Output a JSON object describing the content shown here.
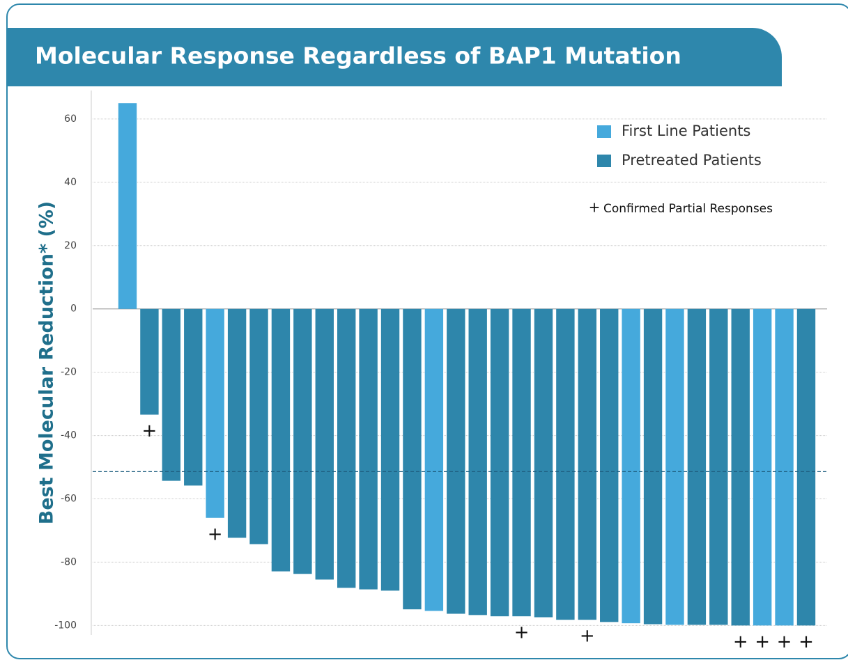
{
  "chart_data": {
    "type": "bar",
    "title": "Molecular Response Regardless of BAP1 Mutation",
    "y_label": "Best Molecular Reduction* (%)",
    "categories": [
      null,
      null,
      null,
      null,
      null,
      null,
      null,
      null,
      null,
      null,
      null,
      null,
      null,
      null,
      null,
      null,
      null,
      null,
      null,
      null,
      null,
      null,
      null,
      null,
      null,
      null,
      null,
      null,
      null,
      null,
      null,
      null
    ],
    "series": [
      {
        "name": "First Line Patients",
        "color": "#45a9dc",
        "values": [
          65,
          null,
          null,
          null,
          -66,
          null,
          null,
          null,
          null,
          null,
          null,
          null,
          null,
          null,
          -95.4,
          null,
          null,
          null,
          null,
          null,
          null,
          null,
          null,
          -99.3,
          null,
          -99.8,
          null,
          null,
          null,
          -100,
          -100,
          null
        ]
      },
      {
        "name": "Pretreated Patients",
        "color": "#2e86ab",
        "values": [
          null,
          -33.4,
          -54.3,
          -55.8,
          null,
          -72.3,
          -74.3,
          -82.9,
          -83.7,
          -85.5,
          -88.1,
          -88.6,
          -89,
          -94.9,
          null,
          -96.3,
          -96.7,
          -97.1,
          -97.1,
          -97.4,
          -98.2,
          -98.2,
          -98.9,
          null,
          -99.6,
          null,
          -99.8,
          -99.8,
          -100,
          null,
          null,
          -100
        ]
      }
    ],
    "pr_marker": "+",
    "pr_label": "Confirmed Partial Responses",
    "pr_bars": [
      1,
      4,
      18,
      21,
      28,
      29,
      30,
      31
    ],
    "reference_line": -51.4,
    "ylim": [
      -103,
      69
    ],
    "yticks": [
      -100,
      -80,
      -60,
      -40,
      -20,
      0,
      20,
      40,
      60
    ],
    "grid": true
  }
}
